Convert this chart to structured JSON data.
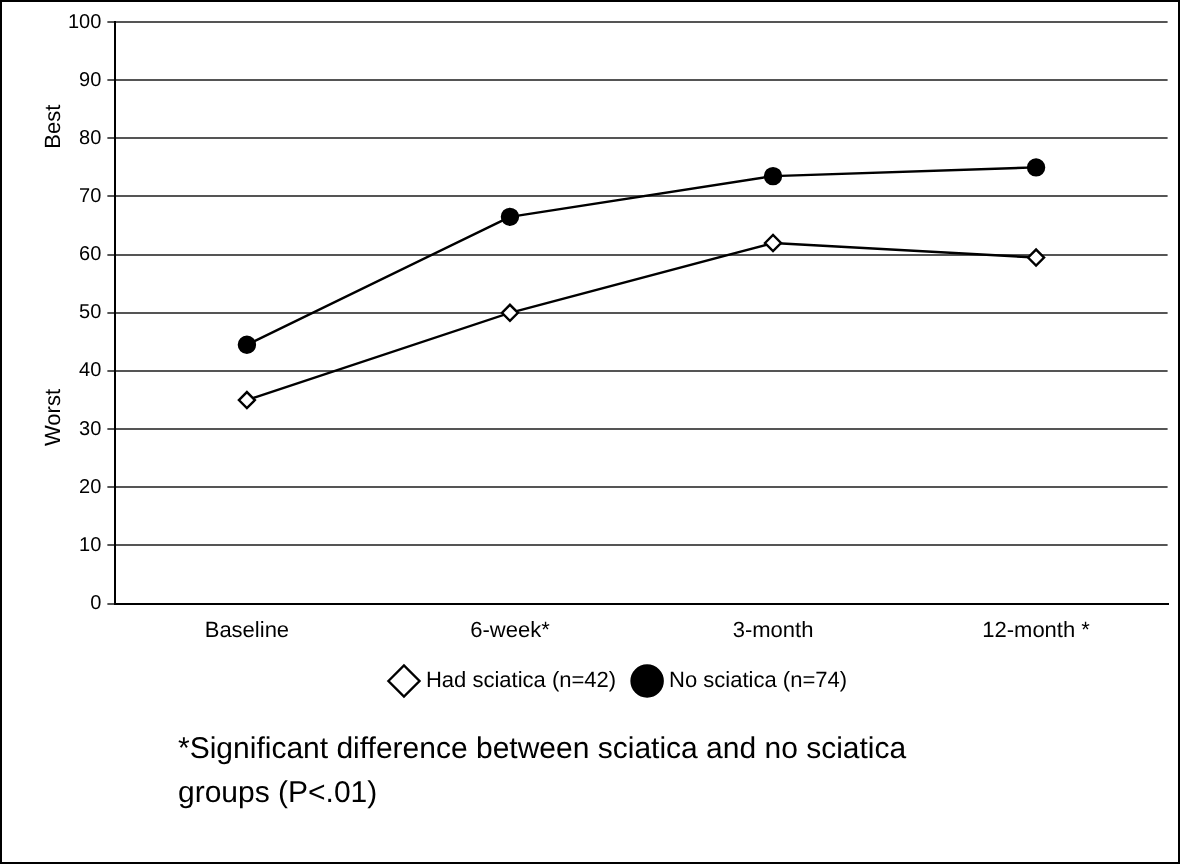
{
  "chart_data": {
    "type": "line",
    "categories": [
      "Baseline",
      "6-week*",
      "3-month",
      "12-month *"
    ],
    "series": [
      {
        "name": "Had sciatica (n=42)",
        "color": "#000000",
        "marker": "diamond",
        "values": [
          35,
          50,
          62,
          59.5
        ]
      },
      {
        "name": "No sciatica (n=74)",
        "color": "#000000",
        "marker": "circle",
        "values": [
          44.5,
          66.5,
          73.5,
          75
        ]
      }
    ],
    "ylim": [
      0,
      100
    ],
    "yticks": [
      0,
      10,
      20,
      30,
      40,
      50,
      60,
      70,
      80,
      90,
      100
    ],
    "grid": "y",
    "legend": "bottom",
    "annotations": [
      "Best",
      "Worst",
      "*Significant difference between sciatica and no sciatica groups (P<.01)"
    ]
  }
}
